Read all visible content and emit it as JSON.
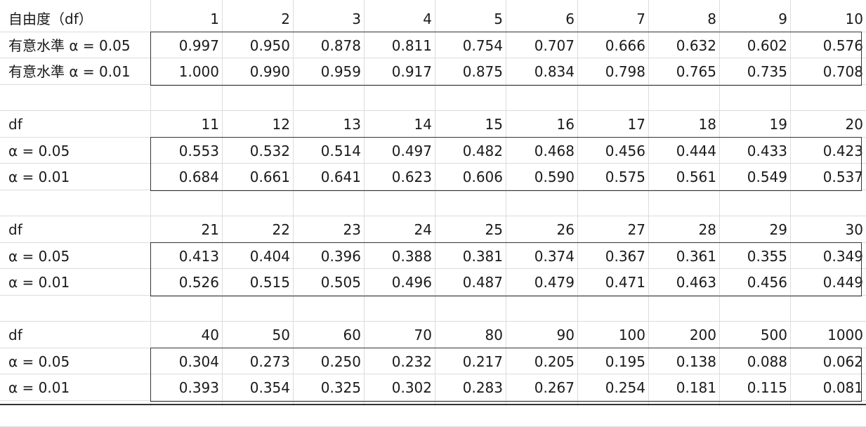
{
  "blocks": [
    {
      "header_label": "自由度（df）",
      "row1_label": "有意水準 α  = 0.05",
      "row2_label": "有意水準 α  = 0.01",
      "df": [
        "1",
        "2",
        "3",
        "4",
        "5",
        "6",
        "7",
        "8",
        "9",
        "10"
      ],
      "alpha05": [
        "0.997",
        "0.950",
        "0.878",
        "0.811",
        "0.754",
        "0.707",
        "0.666",
        "0.632",
        "0.602",
        "0.576"
      ],
      "alpha01": [
        "1.000",
        "0.990",
        "0.959",
        "0.917",
        "0.875",
        "0.834",
        "0.798",
        "0.765",
        "0.735",
        "0.708"
      ]
    },
    {
      "header_label": "df",
      "row1_label": "α  = 0.05",
      "row2_label": "α  = 0.01",
      "df": [
        "11",
        "12",
        "13",
        "14",
        "15",
        "16",
        "17",
        "18",
        "19",
        "20"
      ],
      "alpha05": [
        "0.553",
        "0.532",
        "0.514",
        "0.497",
        "0.482",
        "0.468",
        "0.456",
        "0.444",
        "0.433",
        "0.423"
      ],
      "alpha01": [
        "0.684",
        "0.661",
        "0.641",
        "0.623",
        "0.606",
        "0.590",
        "0.575",
        "0.561",
        "0.549",
        "0.537"
      ]
    },
    {
      "header_label": "df",
      "row1_label": "α  = 0.05",
      "row2_label": "α  = 0.01",
      "df": [
        "21",
        "22",
        "23",
        "24",
        "25",
        "26",
        "27",
        "28",
        "29",
        "30"
      ],
      "alpha05": [
        "0.413",
        "0.404",
        "0.396",
        "0.388",
        "0.381",
        "0.374",
        "0.367",
        "0.361",
        "0.355",
        "0.349"
      ],
      "alpha01": [
        "0.526",
        "0.515",
        "0.505",
        "0.496",
        "0.487",
        "0.479",
        "0.471",
        "0.463",
        "0.456",
        "0.449"
      ]
    },
    {
      "header_label": "df",
      "row1_label": "α  = 0.05",
      "row2_label": "α  = 0.01",
      "df": [
        "40",
        "50",
        "60",
        "70",
        "80",
        "90",
        "100",
        "200",
        "500",
        "1000"
      ],
      "alpha05": [
        "0.304",
        "0.273",
        "0.250",
        "0.232",
        "0.217",
        "0.205",
        "0.195",
        "0.138",
        "0.088",
        "0.062"
      ],
      "alpha01": [
        "0.393",
        "0.354",
        "0.325",
        "0.302",
        "0.283",
        "0.267",
        "0.254",
        "0.181",
        "0.115",
        "0.081"
      ]
    }
  ]
}
